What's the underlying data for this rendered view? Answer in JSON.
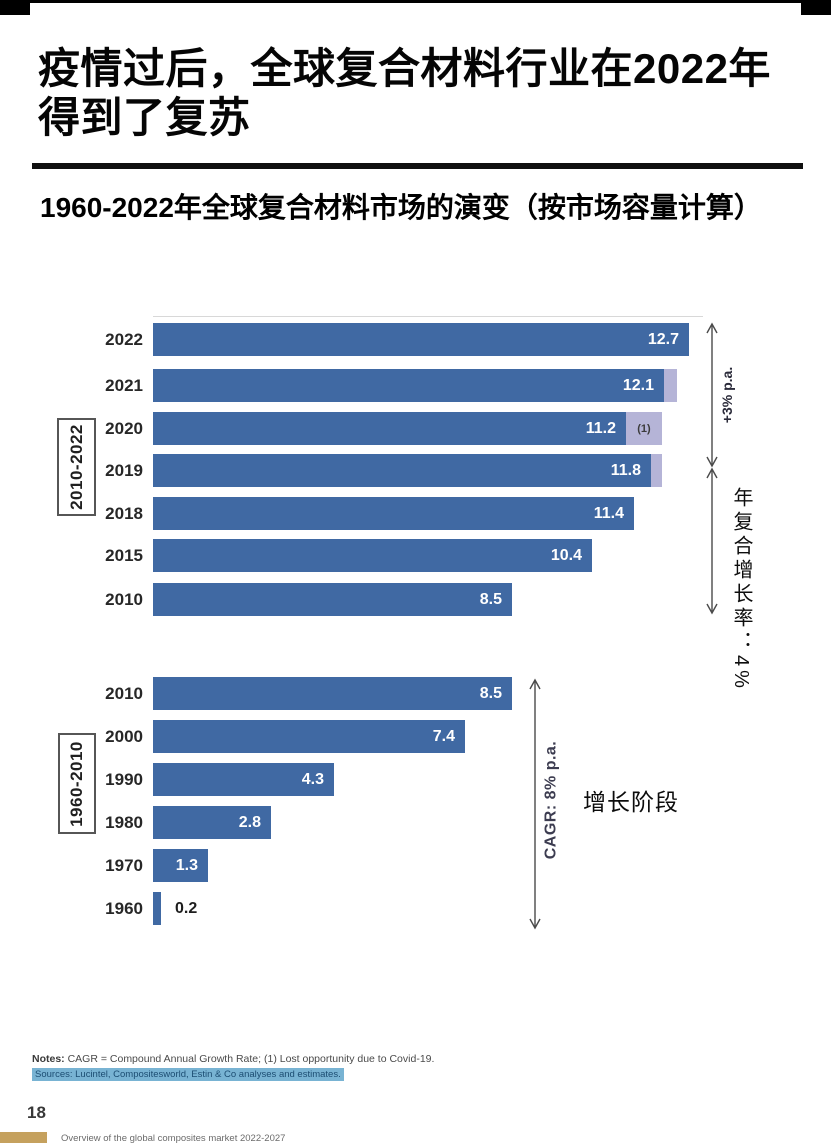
{
  "header": {
    "title_line1": "疫情过后，全球复合材料行业在2022年",
    "title_line2": "得到了复苏",
    "subtitle": "1960-2022年全球复合材料市场的演变（按市场容量计算）"
  },
  "chart_data": {
    "type": "bar",
    "orientation": "horizontal",
    "title": "1960-2022年全球复合材料市场的演变（按市场容量计算）",
    "groups": [
      {
        "label": "2010-2022",
        "bars": [
          {
            "year": "2022",
            "value": 12.7
          },
          {
            "year": "2021",
            "value": 12.1,
            "lost_extension": 0.3
          },
          {
            "year": "2020",
            "value": 11.2,
            "lost_extension": 0.85,
            "note": "(1)"
          },
          {
            "year": "2019",
            "value": 11.8,
            "lost_extension": 0.25
          },
          {
            "year": "2018",
            "value": 11.4
          },
          {
            "year": "2015",
            "value": 10.4
          },
          {
            "year": "2010",
            "value": 8.5
          }
        ]
      },
      {
        "label": "1960-2010",
        "bars": [
          {
            "year": "2010",
            "value": 8.5
          },
          {
            "year": "2000",
            "value": 7.4
          },
          {
            "year": "1990",
            "value": 4.3
          },
          {
            "year": "1980",
            "value": 2.8
          },
          {
            "year": "1970",
            "value": 1.3
          },
          {
            "year": "1960",
            "value": 0.2
          }
        ]
      }
    ],
    "annotations": {
      "top_arrow_label": "+3% p.a.",
      "cagr_2010_2022_label": "年复合增长率：4%",
      "cagr_1960_2010_label": "CAGR: 8% p.a.",
      "growth_stage_label": "增长阶段"
    },
    "colors": {
      "bar": "#4069a3",
      "lost_extension": "#b5b4d7",
      "value_label": "#ffffff"
    }
  },
  "notes": {
    "label": "Notes:",
    "text": " CAGR = Compound Annual Growth Rate; (1) Lost opportunity due to Covid-19.",
    "sources": "Sources: Lucintel, Compositesworld, Estin & Co analyses and estimates."
  },
  "footer": {
    "page_number": "18",
    "report_title": "Overview of the global composites market 2022-2027"
  }
}
